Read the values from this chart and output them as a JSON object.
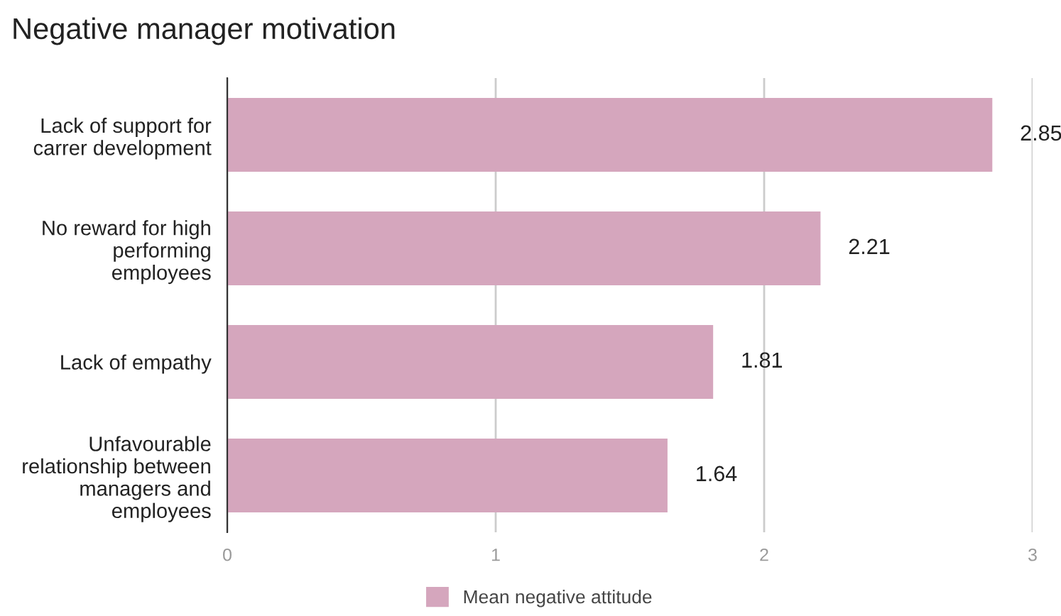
{
  "chart_data": {
    "type": "bar",
    "title": "Negative manager motivation",
    "orientation": "horizontal",
    "categories": [
      "Lack of support for\ncarrer development",
      "No reward for high\nperforming\nemployees",
      "Lack of empathy",
      "Unfavourable\nrelationship between\nmanagers and\nemployees"
    ],
    "series": [
      {
        "name": "Mean negative attitude",
        "color": "#d5a6bd",
        "values": [
          2.85,
          2.21,
          1.81,
          1.64
        ]
      }
    ],
    "xlim": [
      0,
      3
    ],
    "xticks": [
      0,
      1,
      2,
      3
    ],
    "grid": "x",
    "data_labels": true,
    "legend": "bottom"
  }
}
